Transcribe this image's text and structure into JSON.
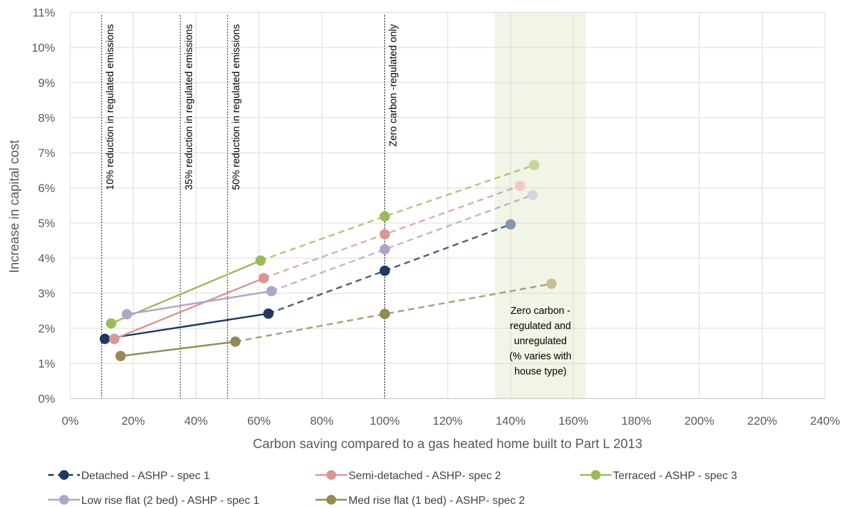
{
  "chart_data": {
    "type": "line",
    "xlabel": "Carbon saving compared to a gas heated home built to Part L 2013",
    "ylabel": "Increase in capital cost",
    "xlim": [
      0,
      240
    ],
    "ylim": [
      0,
      11
    ],
    "x_ticks": [
      "0%",
      "20%",
      "40%",
      "60%",
      "80%",
      "100%",
      "120%",
      "140%",
      "160%",
      "180%",
      "200%",
      "220%",
      "240%"
    ],
    "y_ticks": [
      "0%",
      "1%",
      "2%",
      "3%",
      "4%",
      "5%",
      "6%",
      "7%",
      "8%",
      "9%",
      "10%",
      "11%"
    ],
    "grid": true,
    "legend_position": "bottom",
    "shaded_region": {
      "x_range": [
        135,
        164
      ],
      "color": "#ebf1de",
      "label_lines": [
        "Zero carbon -",
        "regulated and",
        "unregulated",
        "(% varies with",
        "house type)"
      ]
    },
    "reference_lines": [
      {
        "x": 10,
        "label": "10% reduction in regulated emissions"
      },
      {
        "x": 35,
        "label": "35% reduction in regulated emissions"
      },
      {
        "x": 50,
        "label": "50% reduction in regulated emissions"
      },
      {
        "x": 100,
        "label": "Zero carbon -regulated only"
      }
    ],
    "series": [
      {
        "name": "Detached - ASHP - spec 1",
        "color": "#1f3864",
        "faded_color": "#8497b0",
        "dashed_legend": true,
        "x": [
          11,
          63,
          100,
          140
        ],
        "y": [
          1.7,
          2.42,
          3.64,
          4.96
        ]
      },
      {
        "name": "Semi-detached - ASHP- spec 2",
        "color": "#d99694",
        "faded_color": "#f0c9c7",
        "dashed_legend": false,
        "x": [
          14,
          61.5,
          100,
          143
        ],
        "y": [
          1.7,
          3.43,
          4.68,
          6.06
        ]
      },
      {
        "name": "Terraced - ASHP - spec 3",
        "color": "#9bbb59",
        "faded_color": "#c4d79b",
        "dashed_legend": false,
        "x": [
          13,
          60.5,
          100,
          147.5
        ],
        "y": [
          2.14,
          3.93,
          5.19,
          6.65
        ]
      },
      {
        "name": "Low rise flat (2 bed) - ASHP - spec 1",
        "color": "#b3a2c7",
        "faded_color": "#d9d2e3",
        "dashed_legend": false,
        "x": [
          18,
          64,
          100,
          147
        ],
        "y": [
          2.4,
          3.06,
          4.25,
          5.8
        ]
      },
      {
        "name": "Med rise flat (1 bed) - ASHP- spec 2",
        "color": "#948a54",
        "faded_color": "#c4bd97",
        "dashed_legend": false,
        "x": [
          16,
          52.5,
          100,
          153
        ],
        "y": [
          1.21,
          1.62,
          2.41,
          3.27
        ]
      }
    ]
  }
}
